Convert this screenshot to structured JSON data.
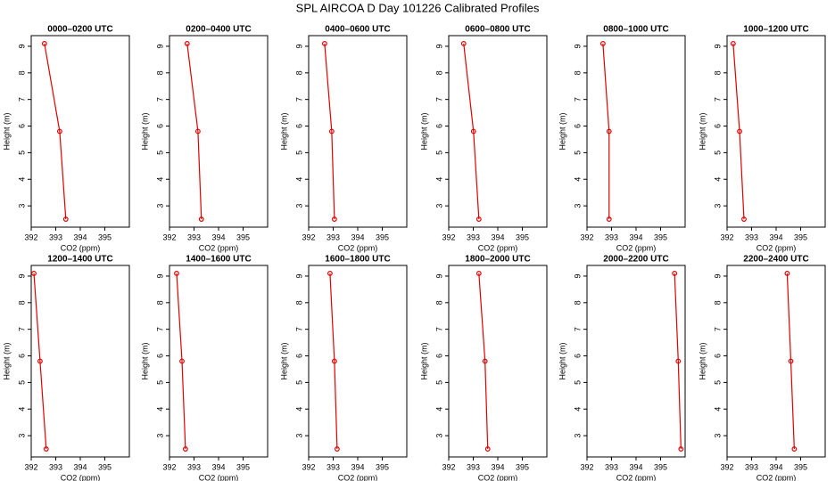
{
  "title": "SPL AIRCOA D  Day 101226  Calibrated Profiles",
  "chart_data": [
    {
      "type": "line",
      "title": "0000–0200 UTC",
      "x_label": "CO2 (ppm)",
      "y_label": "Height (m)",
      "color": "#e00000",
      "x": [
        392.54,
        393.16,
        393.41
      ],
      "values": [
        9.1,
        5.8,
        2.5
      ],
      "xlim": [
        392,
        396
      ],
      "ylim": [
        2.2,
        9.4
      ],
      "xticks": [
        392,
        393,
        394,
        395
      ],
      "yticks": [
        3,
        4,
        5,
        6,
        7,
        8,
        9
      ]
    },
    {
      "type": "line",
      "title": "0200–0400 UTC",
      "x_label": "CO2 (ppm)",
      "y_label": "Height (m)",
      "color": "#e00000",
      "x": [
        392.72,
        393.16,
        393.3
      ],
      "values": [
        9.1,
        5.8,
        2.5
      ],
      "xlim": [
        392,
        396
      ],
      "ylim": [
        2.2,
        9.4
      ],
      "xticks": [
        392,
        393,
        394,
        395
      ],
      "yticks": [
        3,
        4,
        5,
        6,
        7,
        8,
        9
      ]
    },
    {
      "type": "line",
      "title": "0400–0600 UTC",
      "x_label": "CO2 (ppm)",
      "y_label": "Height (m)",
      "color": "#e00000",
      "x": [
        392.65,
        392.94,
        393.05
      ],
      "values": [
        9.1,
        5.8,
        2.5
      ],
      "xlim": [
        392,
        396
      ],
      "ylim": [
        2.2,
        9.4
      ],
      "xticks": [
        392,
        393,
        394,
        395
      ],
      "yticks": [
        3,
        4,
        5,
        6,
        7,
        8,
        9
      ]
    },
    {
      "type": "line",
      "title": "0600–0800 UTC",
      "x_label": "CO2 (ppm)",
      "y_label": "Height (m)",
      "color": "#e00000",
      "x": [
        392.61,
        393.01,
        393.23
      ],
      "values": [
        9.1,
        5.8,
        2.5
      ],
      "xlim": [
        392,
        396
      ],
      "ylim": [
        2.2,
        9.4
      ],
      "xticks": [
        392,
        393,
        394,
        395
      ],
      "yticks": [
        3,
        4,
        5,
        6,
        7,
        8,
        9
      ]
    },
    {
      "type": "line",
      "title": "0800–1000 UTC",
      "x_label": "CO2 (ppm)",
      "y_label": "Height (m)",
      "color": "#e00000",
      "x": [
        392.65,
        392.9,
        392.9
      ],
      "values": [
        9.1,
        5.8,
        2.5
      ],
      "xlim": [
        392,
        396
      ],
      "ylim": [
        2.2,
        9.4
      ],
      "xticks": [
        392,
        393,
        394,
        395
      ],
      "yticks": [
        3,
        4,
        5,
        6,
        7,
        8,
        9
      ]
    },
    {
      "type": "line",
      "title": "1000–1200 UTC",
      "x_label": "CO2 (ppm)",
      "y_label": "Height (m)",
      "color": "#e00000",
      "x": [
        392.25,
        392.51,
        392.69
      ],
      "values": [
        9.1,
        5.8,
        2.5
      ],
      "xlim": [
        392,
        396
      ],
      "ylim": [
        2.2,
        9.4
      ],
      "xticks": [
        392,
        393,
        394,
        395
      ],
      "yticks": [
        3,
        4,
        5,
        6,
        7,
        8,
        9
      ]
    },
    {
      "type": "line",
      "title": "1200–1400 UTC",
      "x_label": "CO2 (ppm)",
      "y_label": "Height (m)",
      "color": "#e00000",
      "x": [
        392.11,
        392.36,
        392.61
      ],
      "values": [
        9.1,
        5.8,
        2.5
      ],
      "xlim": [
        392,
        396
      ],
      "ylim": [
        2.2,
        9.4
      ],
      "xticks": [
        392,
        393,
        394,
        395
      ],
      "yticks": [
        3,
        4,
        5,
        6,
        7,
        8,
        9
      ]
    },
    {
      "type": "line",
      "title": "1400–1600 UTC",
      "x_label": "CO2 (ppm)",
      "y_label": "Height (m)",
      "color": "#e00000",
      "x": [
        392.29,
        392.51,
        392.65
      ],
      "values": [
        9.1,
        5.8,
        2.5
      ],
      "xlim": [
        392,
        396
      ],
      "ylim": [
        2.2,
        9.4
      ],
      "xticks": [
        392,
        393,
        394,
        395
      ],
      "yticks": [
        3,
        4,
        5,
        6,
        7,
        8,
        9
      ]
    },
    {
      "type": "line",
      "title": "1600–1800 UTC",
      "x_label": "CO2 (ppm)",
      "y_label": "Height (m)",
      "color": "#e00000",
      "x": [
        392.87,
        393.05,
        393.16
      ],
      "values": [
        9.1,
        5.8,
        2.5
      ],
      "xlim": [
        392,
        396
      ],
      "ylim": [
        2.2,
        9.4
      ],
      "xticks": [
        392,
        393,
        394,
        395
      ],
      "yticks": [
        3,
        4,
        5,
        6,
        7,
        8,
        9
      ]
    },
    {
      "type": "line",
      "title": "1800–2000 UTC",
      "x_label": "CO2 (ppm)",
      "y_label": "Height (m)",
      "color": "#e00000",
      "x": [
        393.23,
        393.48,
        393.59
      ],
      "values": [
        9.1,
        5.8,
        2.5
      ],
      "xlim": [
        392,
        396
      ],
      "ylim": [
        2.2,
        9.4
      ],
      "xticks": [
        392,
        393,
        394,
        395
      ],
      "yticks": [
        3,
        4,
        5,
        6,
        7,
        8,
        9
      ]
    },
    {
      "type": "line",
      "title": "2000–2200 UTC",
      "x_label": "CO2 (ppm)",
      "y_label": "Height (m)",
      "color": "#e00000",
      "x": [
        395.57,
        395.72,
        395.83
      ],
      "values": [
        9.1,
        5.8,
        2.5
      ],
      "xlim": [
        392,
        396
      ],
      "ylim": [
        2.2,
        9.4
      ],
      "xticks": [
        392,
        393,
        394,
        395
      ],
      "yticks": [
        3,
        4,
        5,
        6,
        7,
        8,
        9
      ]
    },
    {
      "type": "line",
      "title": "2200–2400 UTC",
      "x_label": "CO2 (ppm)",
      "y_label": "Height (m)",
      "color": "#e00000",
      "x": [
        394.45,
        394.6,
        394.74
      ],
      "values": [
        9.1,
        5.8,
        2.5
      ],
      "xlim": [
        392,
        396
      ],
      "ylim": [
        2.2,
        9.4
      ],
      "xticks": [
        392,
        393,
        394,
        395
      ],
      "yticks": [
        3,
        4,
        5,
        6,
        7,
        8,
        9
      ]
    }
  ]
}
